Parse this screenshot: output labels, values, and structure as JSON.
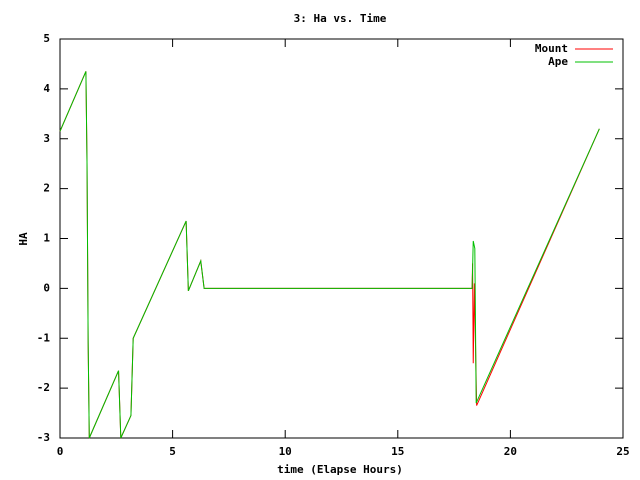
{
  "chart_data": {
    "type": "line",
    "title": "3: Ha vs. Time",
    "x_label": "time (Elapse Hours)",
    "y_label": "HA",
    "xlim": [
      0,
      25
    ],
    "xticks": [
      0,
      5,
      10,
      15,
      20,
      25
    ],
    "ylim": [
      -3,
      5
    ],
    "yticks": [
      -3,
      -2,
      -1,
      0,
      1,
      2,
      3,
      4,
      5
    ],
    "legend": "top-right",
    "series": [
      {
        "name": "Mount",
        "color": "#ff0000",
        "x": [
          0,
          1.15,
          1.2,
          1.25,
          1.3,
          2.6,
          2.7,
          3.15,
          3.25,
          5.6,
          5.7,
          6.25,
          6.4,
          18.3,
          18.32,
          18.35,
          18.4,
          18.5,
          23.95
        ],
        "values": [
          3.15,
          4.35,
          2.5,
          -1.1,
          -3.0,
          -1.65,
          -3.0,
          -2.55,
          -1.0,
          1.35,
          -0.05,
          0.55,
          0.0,
          0.0,
          0.5,
          -1.5,
          0.1,
          -2.35,
          3.2
        ]
      },
      {
        "name": "Ape",
        "color": "#00c000",
        "x": [
          0,
          1.15,
          1.2,
          1.25,
          1.3,
          2.6,
          2.7,
          3.15,
          3.25,
          5.6,
          5.7,
          6.25,
          6.4,
          18.3,
          18.35,
          18.42,
          18.48,
          23.95
        ],
        "values": [
          3.15,
          4.35,
          2.5,
          -1.1,
          -3.0,
          -1.65,
          -3.0,
          -2.55,
          -1.0,
          1.35,
          -0.05,
          0.55,
          0.0,
          0.0,
          0.95,
          0.8,
          -2.3,
          3.2
        ]
      }
    ]
  }
}
